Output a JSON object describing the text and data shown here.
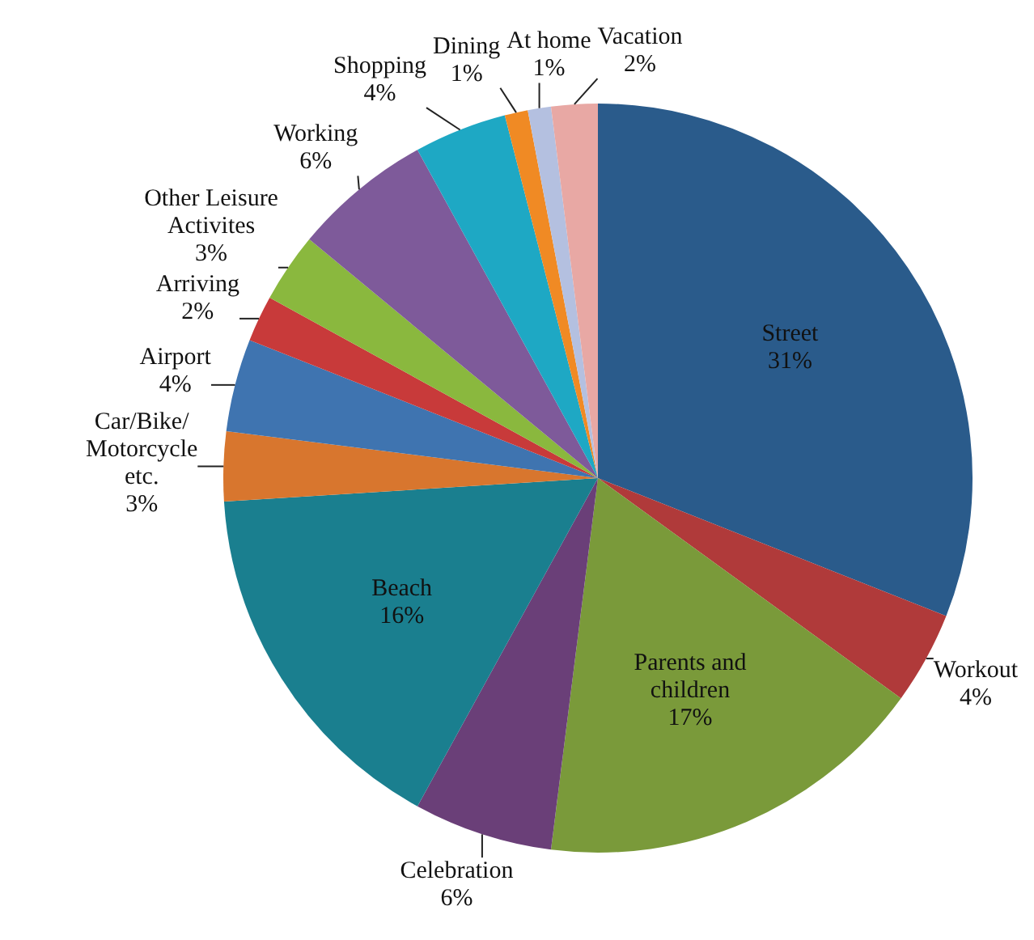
{
  "chart_data": {
    "type": "pie",
    "categories": [
      "Street",
      "Workout",
      "Parents and children",
      "Celebration",
      "Beach",
      "Car/Bike/ Motorcycle etc.",
      "Airport",
      "Arriving",
      "Other Leisure Activites",
      "Working",
      "Shopping",
      "Dining",
      "At home",
      "Vacation"
    ],
    "values": [
      31,
      4,
      17,
      6,
      16,
      3,
      4,
      2,
      3,
      6,
      4,
      1,
      1,
      2
    ],
    "colors": [
      "#2a5b8b",
      "#b03a3a",
      "#7a9a3a",
      "#6a3f78",
      "#1a7f8f",
      "#d8762e",
      "#3f74b0",
      "#c83a3a",
      "#8ab83e",
      "#7e5a9a",
      "#1ea8c4",
      "#f08a24",
      "#b4c0e0",
      "#e8a8a4"
    ],
    "value_labels": [
      "31%",
      "4%",
      "17%",
      "6%",
      "16%",
      "3%",
      "4%",
      "2%",
      "3%",
      "6%",
      "4%",
      "1%",
      "1%",
      "2%"
    ],
    "legend": false
  }
}
